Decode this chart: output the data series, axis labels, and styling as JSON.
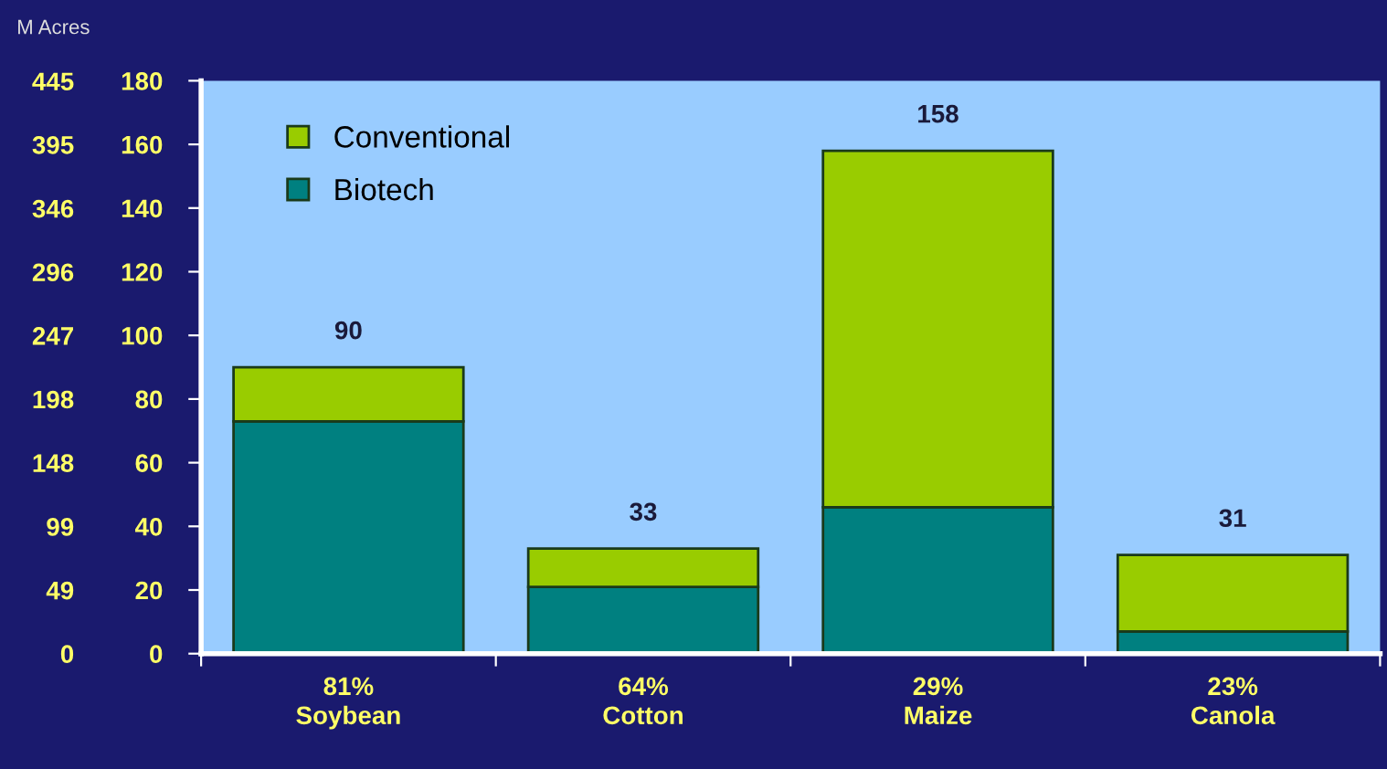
{
  "chart_data": {
    "type": "bar",
    "stacked": true,
    "y2label": "M Acres",
    "categories": [
      "81%\nSoybean",
      "64%\nCotton",
      "29%\nMaize",
      "23%\nCanola"
    ],
    "series": [
      {
        "name": "Biotech",
        "color": "#008080",
        "values": [
          73,
          21,
          46,
          7
        ]
      },
      {
        "name": "Conventional",
        "color": "#99cc00",
        "values": [
          17,
          12,
          112,
          24
        ]
      }
    ],
    "totals": [
      "90",
      "33",
      "158",
      "31"
    ],
    "ylim": [
      0,
      180
    ],
    "yticks": [
      0,
      20,
      40,
      60,
      80,
      100,
      120,
      140,
      160,
      180
    ],
    "y2lim": [
      0,
      445
    ],
    "y2ticks": [
      {
        "value": 0,
        "label": "0"
      },
      {
        "value": 49.4,
        "label": "49"
      },
      {
        "value": 98.8,
        "label": "99"
      },
      {
        "value": 148.3,
        "label": "148"
      },
      {
        "value": 197.7,
        "label": "198"
      },
      {
        "value": 247.1,
        "label": "247"
      },
      {
        "value": 296.5,
        "label": "296"
      },
      {
        "value": 345.9,
        "label": "346"
      },
      {
        "value": 395.4,
        "label": "395"
      },
      {
        "value": 444.8,
        "label": "445"
      }
    ],
    "legend": "top left",
    "grid": false
  }
}
